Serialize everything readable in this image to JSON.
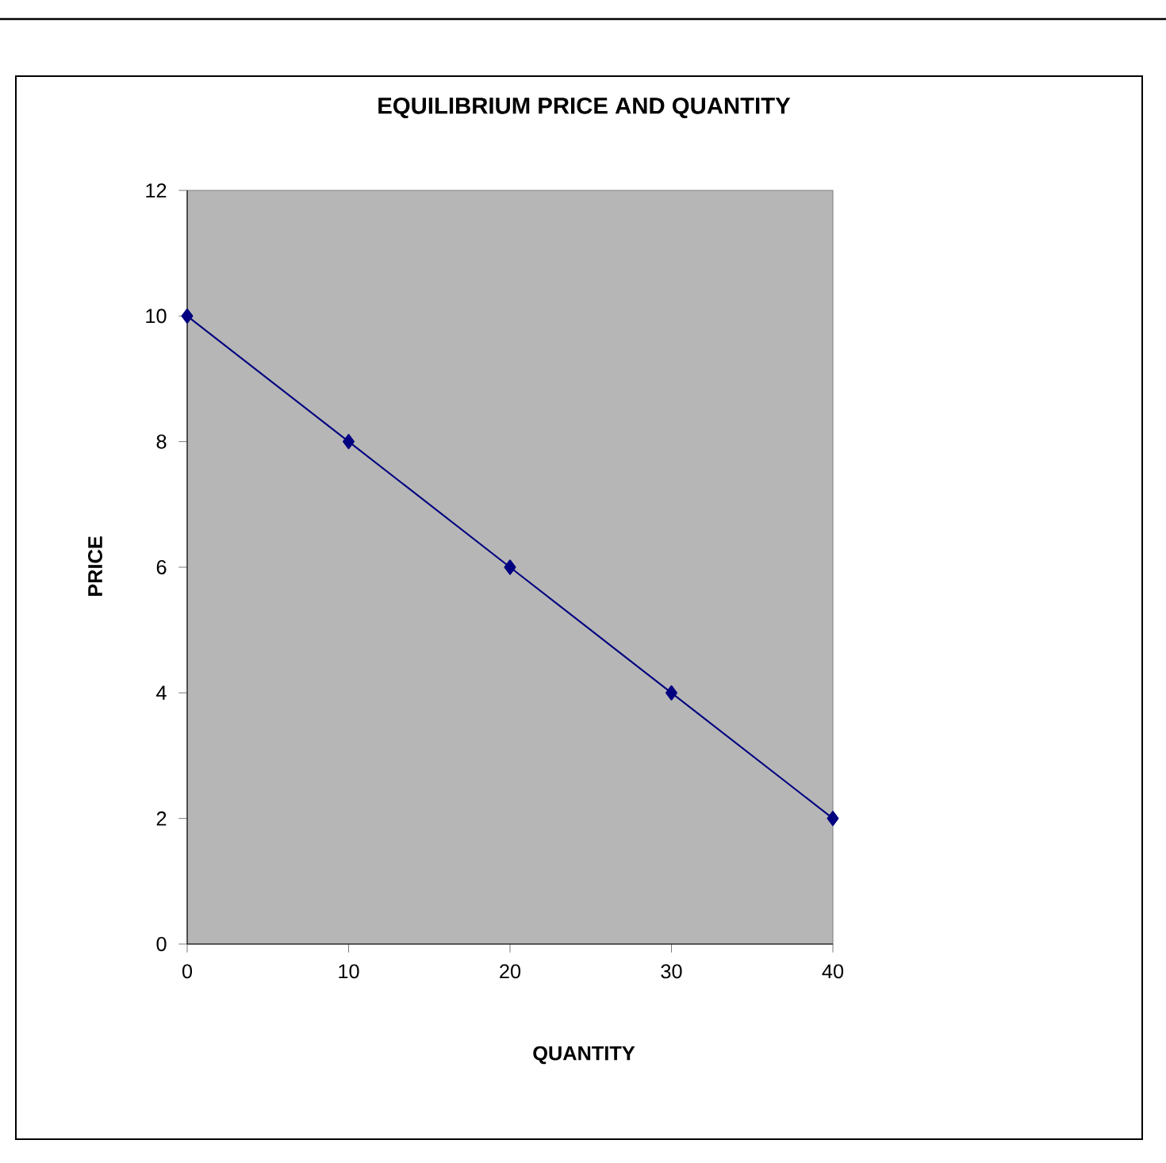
{
  "chart_data": {
    "type": "line",
    "title": "EQUILIBRIUM PRICE AND QUANTITY",
    "xlabel": "QUANTITY",
    "ylabel": "PRICE",
    "x": [
      0,
      10,
      20,
      30,
      40
    ],
    "series": [
      {
        "color": "#000080",
        "values": [
          10,
          8,
          6,
          4,
          2
        ]
      }
    ],
    "xlim": [
      0,
      40
    ],
    "ylim": [
      0,
      12
    ],
    "xticks": [
      0,
      10,
      20,
      30,
      40
    ],
    "yticks": [
      0,
      2,
      4,
      6,
      8,
      10,
      12
    ],
    "marker": "diamond",
    "line_style": "solid",
    "grid": false
  }
}
